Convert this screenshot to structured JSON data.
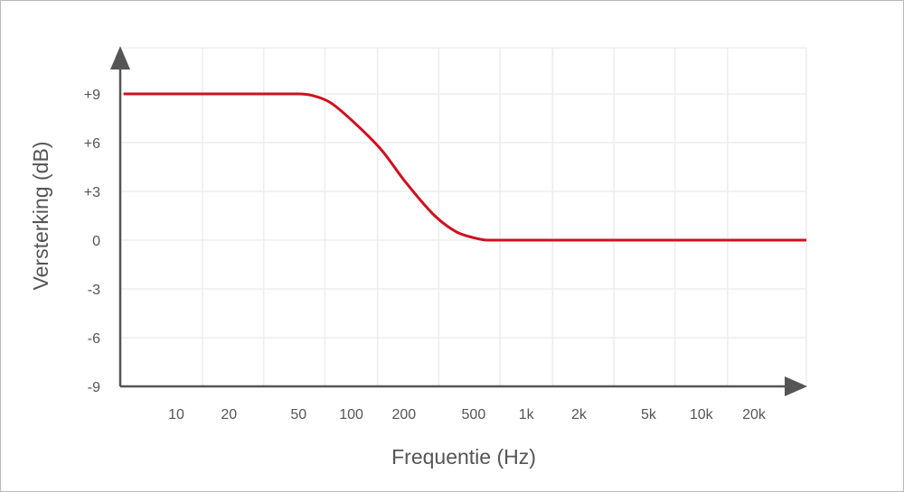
{
  "chart_data": {
    "type": "line",
    "xlabel": "Frequentie (Hz)",
    "ylabel": "Versterking (dB)",
    "x_scale": "log",
    "y_ticks": [
      "+9",
      "+6",
      "+3",
      "0",
      "-3",
      "-6",
      "-9"
    ],
    "y_tick_values": [
      9,
      6,
      3,
      0,
      -3,
      -6,
      -9
    ],
    "x_ticks": [
      "10",
      "20",
      "50",
      "100",
      "200",
      "500",
      "1k",
      "2k",
      "5k",
      "10k",
      "20k"
    ],
    "x_tick_values": [
      10,
      20,
      50,
      100,
      200,
      500,
      1000,
      2000,
      5000,
      10000,
      20000
    ],
    "ylim": [
      -9,
      9
    ],
    "grid": true,
    "series": [
      {
        "color": "#d0101f",
        "x": [
          5,
          10,
          20,
          50,
          60,
          75,
          100,
          150,
          200,
          300,
          400,
          500,
          600,
          1000,
          2000,
          5000,
          10000,
          20000,
          40000
        ],
        "y": [
          9,
          9,
          9,
          9,
          8.9,
          8.5,
          7.4,
          5.5,
          3.7,
          1.5,
          0.5,
          0.15,
          0,
          0,
          0,
          0,
          0,
          0,
          0
        ]
      }
    ]
  },
  "colors": {
    "axis": "#555555",
    "grid": "#ededed",
    "curve": "#d0101f",
    "text": "#555555",
    "border": "#b9b9b9"
  }
}
